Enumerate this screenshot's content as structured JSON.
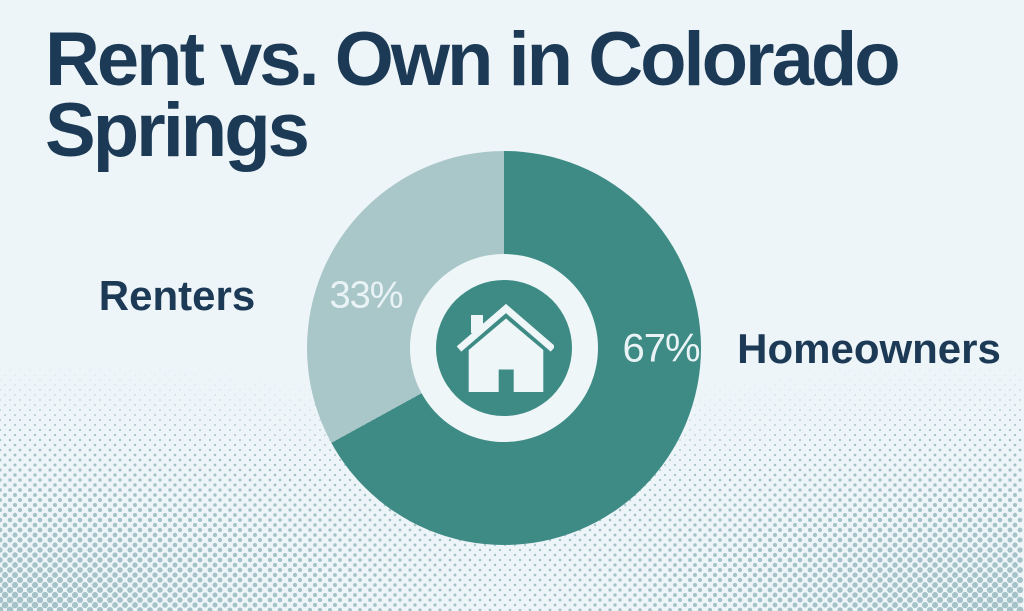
{
  "chart_data": {
    "type": "pie",
    "title": "Rent vs. Own in Colorado Springs",
    "donut": true,
    "center_icon": "house",
    "legend_position": "sides",
    "series": [
      {
        "name": "Homeowners",
        "value": 67,
        "label": "67%"
      },
      {
        "name": "Renters",
        "value": 33,
        "label": "33%"
      }
    ],
    "colors": [
      "#3e8b85",
      "#a9c6c9"
    ]
  },
  "colors": {
    "background": "#edf5f8",
    "title_text": "#1c3956",
    "category_label_text": "#1c3956",
    "percent_label_text": "#e9f3f5",
    "donut_ring": "#eef6f8",
    "house_icon": "#eef6f8",
    "halftone_dot": "#a4c2c7"
  }
}
